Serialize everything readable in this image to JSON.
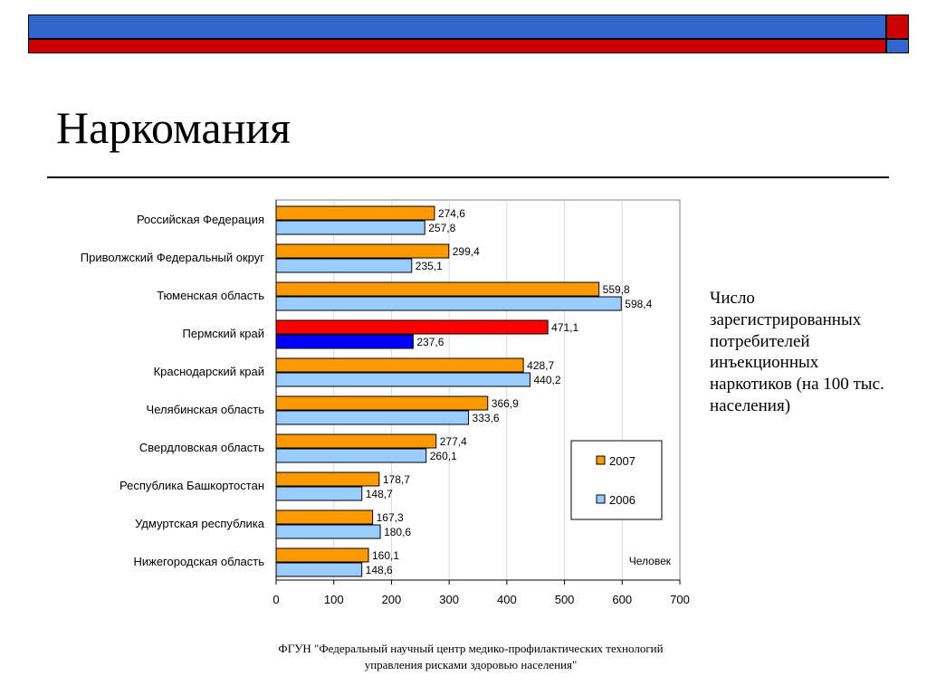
{
  "slide": {
    "title": "Наркомания",
    "side_note": "Число зарегистрированных потребителей инъекционных наркотиков (на 100 тыс. населения)",
    "footer_line1": "ФГУН \"Федеральный научный центр медико-профилактических технологий",
    "footer_line2": "управления рисками здоровью населения\""
  },
  "colors": {
    "deco_blue": "#3366cc",
    "deco_red": "#cc0000",
    "series_2007": "#ff9900",
    "series_2006": "#99ccff",
    "highlight_2007": "#ff0000",
    "highlight_2006": "#0000ff"
  },
  "chart_data": {
    "type": "bar",
    "orientation": "horizontal",
    "categories": [
      "Российская Федерация",
      "Приволжский Федеральный округ",
      "Тюменская область",
      "Пермский край",
      "Краснодарский край",
      "Челябинская область",
      "Свердловская область",
      "Республика Башкортостан",
      "Удмуртская республика",
      "Нижегородская область"
    ],
    "series": [
      {
        "name": "2007",
        "values": [
          274.6,
          299.4,
          559.8,
          471.1,
          428.7,
          366.9,
          277.4,
          178.7,
          167.3,
          160.1
        ],
        "labels": [
          "274,6",
          "299,4",
          "559,8",
          "471,1",
          "428,7",
          "366,9",
          "277,4",
          "178,7",
          "167,3",
          "160,1"
        ]
      },
      {
        "name": "2006",
        "values": [
          257.8,
          235.1,
          598.4,
          237.6,
          440.2,
          333.6,
          260.1,
          148.7,
          180.6,
          148.6
        ],
        "labels": [
          "257,8",
          "235,1",
          "598,4",
          "237,6",
          "440,2",
          "333,6",
          "260,1",
          "148,7",
          "180,6",
          "148,6"
        ]
      }
    ],
    "highlight_category": "Пермский край",
    "xlim": [
      0,
      700
    ],
    "xticks": [
      "0",
      "100",
      "200",
      "300",
      "400",
      "500",
      "600",
      "700"
    ],
    "xlabel": "Человек",
    "grid": true,
    "legend_placement": "right"
  }
}
